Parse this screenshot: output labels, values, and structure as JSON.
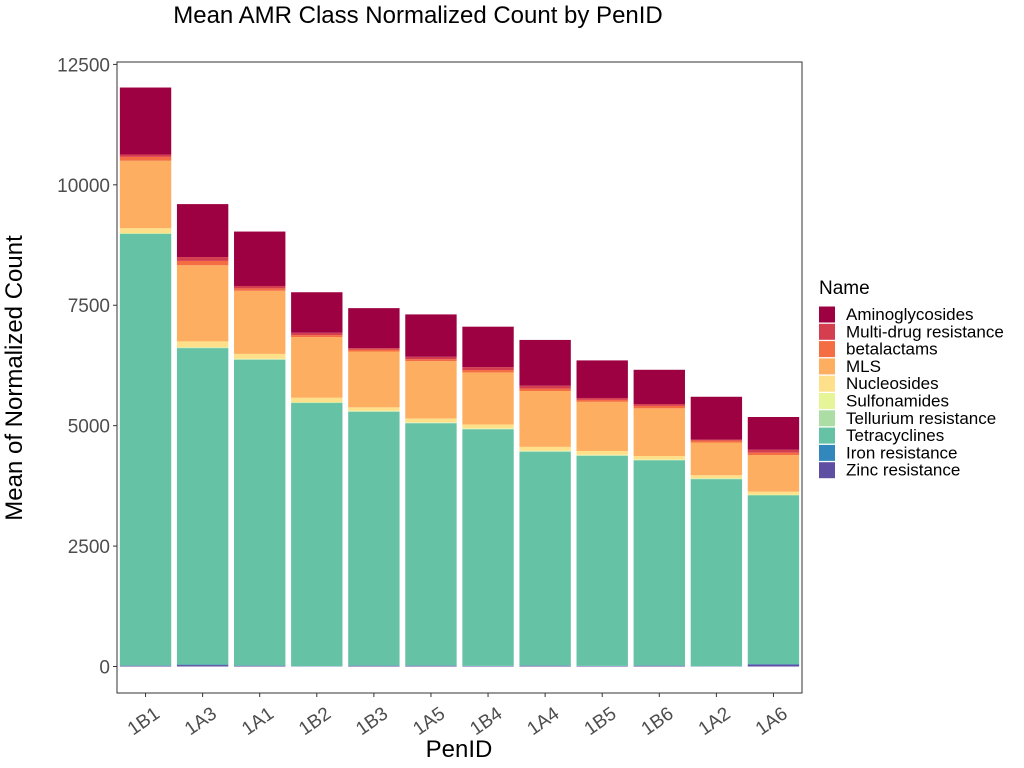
{
  "chart_data": {
    "type": "bar",
    "stacked": true,
    "title": "Mean AMR Class Normalized Count by PenID",
    "xlabel": "PenID",
    "ylabel": "Mean of Normalized Count",
    "ylim": [
      -550,
      12550
    ],
    "yticks": [
      0,
      2500,
      5000,
      7500,
      10000,
      12500
    ],
    "yticklabels": [
      "0",
      "2500",
      "5000",
      "7500",
      "10000",
      "12500"
    ],
    "legend_title": "Name",
    "legend_position": "right",
    "grid": false,
    "categories": [
      "1B1",
      "1A3",
      "1A1",
      "1B2",
      "1B3",
      "1A5",
      "1B4",
      "1A4",
      "1B5",
      "1B6",
      "1A2",
      "1A6"
    ],
    "series": [
      {
        "name": "Zinc resistance",
        "color": "#5E4FA2",
        "values": [
          15,
          30,
          15,
          5,
          15,
          15,
          10,
          15,
          10,
          15,
          5,
          40
        ]
      },
      {
        "name": "Iron resistance",
        "color": "#3288BD",
        "values": [
          5,
          10,
          5,
          5,
          5,
          5,
          5,
          5,
          5,
          5,
          5,
          10
        ]
      },
      {
        "name": "Tetracyclines",
        "color": "#66C2A5",
        "values": [
          8960,
          6570,
          6350,
          5460,
          5270,
          5030,
          4910,
          4440,
          4360,
          4260,
          3880,
          3500
        ]
      },
      {
        "name": "Tellurium resistance",
        "color": "#ABDDA4",
        "values": [
          10,
          10,
          10,
          10,
          10,
          10,
          10,
          10,
          10,
          10,
          10,
          10
        ]
      },
      {
        "name": "Sulfonamides",
        "color": "#E6F598",
        "values": [
          10,
          10,
          10,
          10,
          10,
          10,
          10,
          10,
          10,
          10,
          10,
          10
        ]
      },
      {
        "name": "Nucleosides",
        "color": "#FEE08B",
        "values": [
          100,
          120,
          100,
          90,
          70,
          80,
          80,
          80,
          80,
          70,
          60,
          60
        ]
      },
      {
        "name": "MLS",
        "color": "#FDAE61",
        "values": [
          1400,
          1580,
          1310,
          1260,
          1160,
          1190,
          1080,
          1160,
          1020,
          990,
          680,
          760
        ]
      },
      {
        "name": "betalactams",
        "color": "#F46D43",
        "values": [
          80,
          90,
          50,
          40,
          40,
          40,
          50,
          50,
          40,
          50,
          40,
          50
        ]
      },
      {
        "name": "Multi-drug resistance",
        "color": "#D53E4F",
        "values": [
          50,
          80,
          50,
          50,
          30,
          50,
          60,
          60,
          40,
          40,
          20,
          60
        ]
      },
      {
        "name": "Aminoglycosides",
        "color": "#9E0142",
        "values": [
          1390,
          1100,
          1130,
          840,
          830,
          880,
          840,
          950,
          780,
          710,
          890,
          680
        ]
      }
    ],
    "legend_order": [
      "Aminoglycosides",
      "Multi-drug resistance",
      "betalactams",
      "MLS",
      "Nucleosides",
      "Sulfonamides",
      "Tellurium resistance",
      "Tetracyclines",
      "Iron resistance",
      "Zinc resistance"
    ]
  }
}
